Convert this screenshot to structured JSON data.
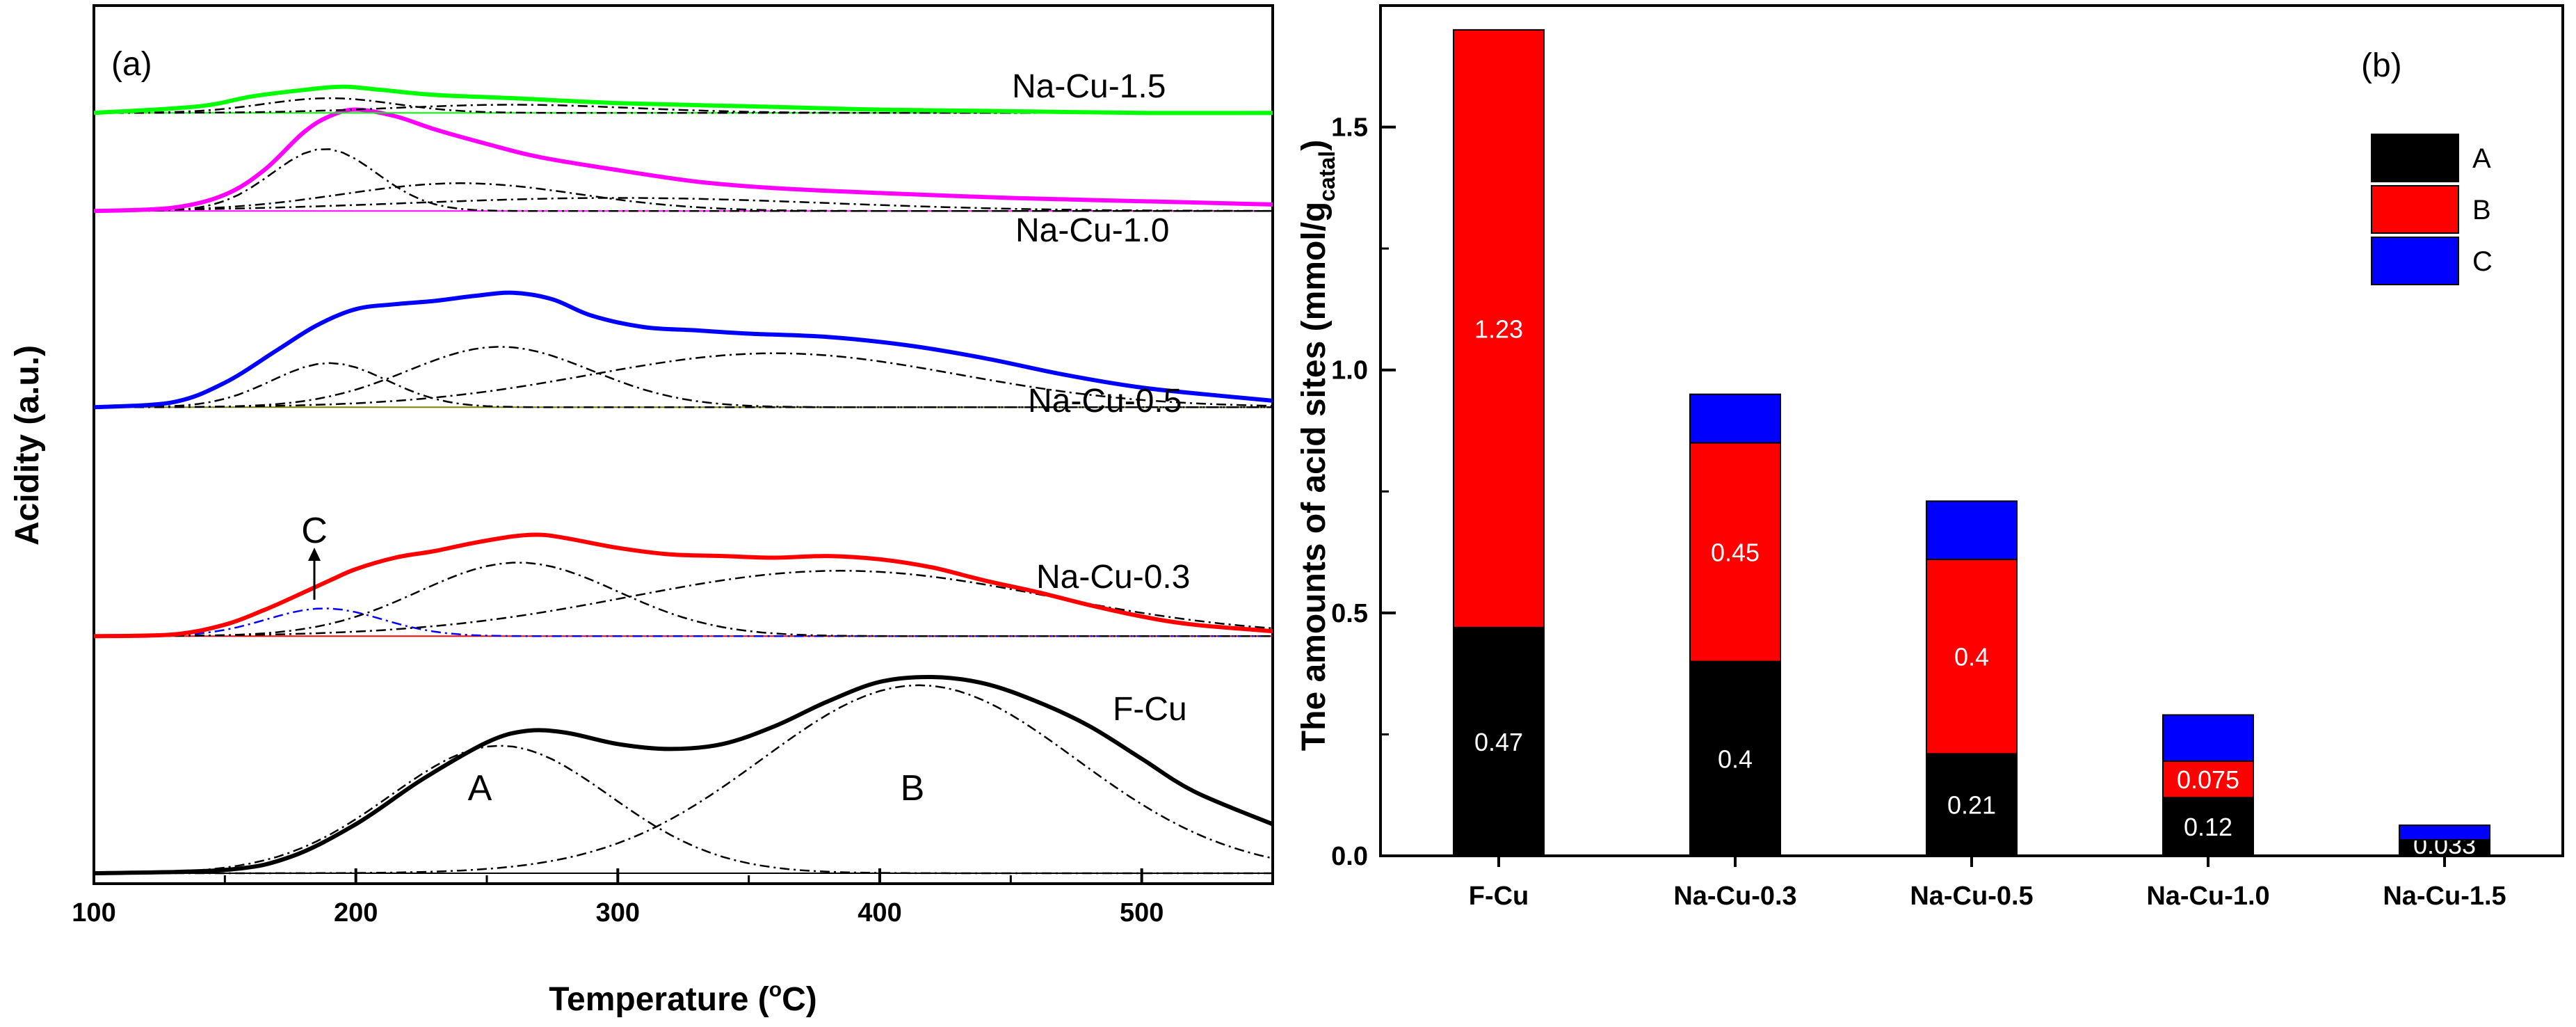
{
  "colors": {
    "F-Cu": "#000000",
    "Na-Cu-0.3": "#ff0000",
    "Na-Cu-0.5": "#0000ff",
    "Na-Cu-1.0": "#ff00ff",
    "Na-Cu-1.5": "#00ff00",
    "A": "#000000",
    "B": "#ff0000",
    "C": "#0000ff"
  },
  "chart_data": [
    {
      "type": "line",
      "panel_label": "(a)",
      "xlabel": "Temperature (",
      "xlabel_degree": "o",
      "xlabel_unit": "C)",
      "ylabel": "Acidity (a.u.)",
      "xlim": [
        100,
        550
      ],
      "xticks": [
        "100",
        "200",
        "300",
        "400",
        "500"
      ],
      "ylim": [
        0,
        5
      ],
      "peak_labels": [
        "A",
        "B",
        "C"
      ],
      "series": [
        {
          "name": "F-Cu",
          "offset": 0.0,
          "x": [
            100,
            150,
            175,
            200,
            225,
            250,
            265,
            280,
            300,
            320,
            340,
            360,
            380,
            400,
            420,
            440,
            460,
            480,
            500,
            520,
            550
          ],
          "y": [
            0.0,
            0.02,
            0.1,
            0.3,
            0.57,
            0.8,
            0.87,
            0.86,
            0.79,
            0.76,
            0.79,
            0.9,
            1.05,
            1.17,
            1.2,
            1.16,
            1.05,
            0.9,
            0.7,
            0.5,
            0.3
          ]
        },
        {
          "name": "Na-Cu-0.3",
          "offset": 1.45,
          "x": [
            100,
            130,
            150,
            165,
            175,
            190,
            200,
            215,
            230,
            245,
            260,
            270,
            280,
            300,
            320,
            340,
            360,
            380,
            400,
            420,
            440,
            460,
            480,
            500,
            520,
            550
          ],
          "y": [
            0.0,
            0.01,
            0.07,
            0.16,
            0.23,
            0.34,
            0.41,
            0.48,
            0.52,
            0.57,
            0.61,
            0.62,
            0.6,
            0.54,
            0.5,
            0.49,
            0.48,
            0.49,
            0.47,
            0.42,
            0.34,
            0.27,
            0.19,
            0.12,
            0.07,
            0.03
          ]
        },
        {
          "name": "Na-Cu-0.5",
          "offset": 2.85,
          "x": [
            100,
            130,
            150,
            170,
            185,
            200,
            215,
            230,
            245,
            260,
            275,
            290,
            310,
            330,
            350,
            380,
            410,
            440,
            470,
            500,
            530,
            550
          ],
          "y": [
            0.0,
            0.03,
            0.15,
            0.35,
            0.5,
            0.6,
            0.63,
            0.65,
            0.68,
            0.7,
            0.66,
            0.56,
            0.49,
            0.47,
            0.45,
            0.43,
            0.38,
            0.3,
            0.2,
            0.12,
            0.07,
            0.04
          ]
        },
        {
          "name": "Na-Cu-1.0",
          "offset": 4.05,
          "x": [
            100,
            130,
            150,
            165,
            180,
            190,
            200,
            215,
            230,
            250,
            270,
            300,
            330,
            360,
            400,
            450,
            500,
            550
          ],
          "y": [
            0.0,
            0.02,
            0.1,
            0.25,
            0.48,
            0.58,
            0.62,
            0.58,
            0.5,
            0.41,
            0.33,
            0.25,
            0.18,
            0.14,
            0.11,
            0.08,
            0.06,
            0.04
          ]
        },
        {
          "name": "Na-Cu-1.5",
          "offset": 4.65,
          "x": [
            100,
            140,
            160,
            180,
            195,
            210,
            230,
            260,
            300,
            350,
            400,
            450,
            500,
            550
          ],
          "y": [
            0.0,
            0.04,
            0.1,
            0.14,
            0.16,
            0.14,
            0.11,
            0.09,
            0.06,
            0.04,
            0.02,
            0.01,
            0.0,
            0.0
          ]
        }
      ]
    },
    {
      "type": "bar",
      "stacked": true,
      "panel_label": "(b)",
      "ylabel": "The amounts of acid sites (mmol/g",
      "ylabel_sub": "catal",
      "ylabel_close": ")",
      "categories": [
        "F-Cu",
        "Na-Cu-0.3",
        "Na-Cu-0.5",
        "Na-Cu-1.0",
        "Na-Cu-1.5"
      ],
      "ylim": [
        0.0,
        1.75
      ],
      "yticks": [
        "0.0",
        "0.5",
        "1.0",
        "1.5"
      ],
      "legend_position": "top-right",
      "series": [
        {
          "name": "A",
          "values": [
            0.47,
            0.4,
            0.21,
            0.12,
            0.033
          ],
          "labels": [
            "0.47",
            "0.4",
            "0.21",
            "0.12",
            "0.033"
          ]
        },
        {
          "name": "B",
          "values": [
            1.23,
            0.45,
            0.4,
            0.075,
            0.0
          ],
          "labels": [
            "1.23",
            "0.45",
            "0.4",
            "0.075",
            ""
          ]
        },
        {
          "name": "C",
          "values": [
            0.0,
            0.1,
            0.12,
            0.095,
            0.03
          ],
          "labels": [
            "",
            "",
            "",
            "",
            ""
          ]
        }
      ]
    }
  ]
}
